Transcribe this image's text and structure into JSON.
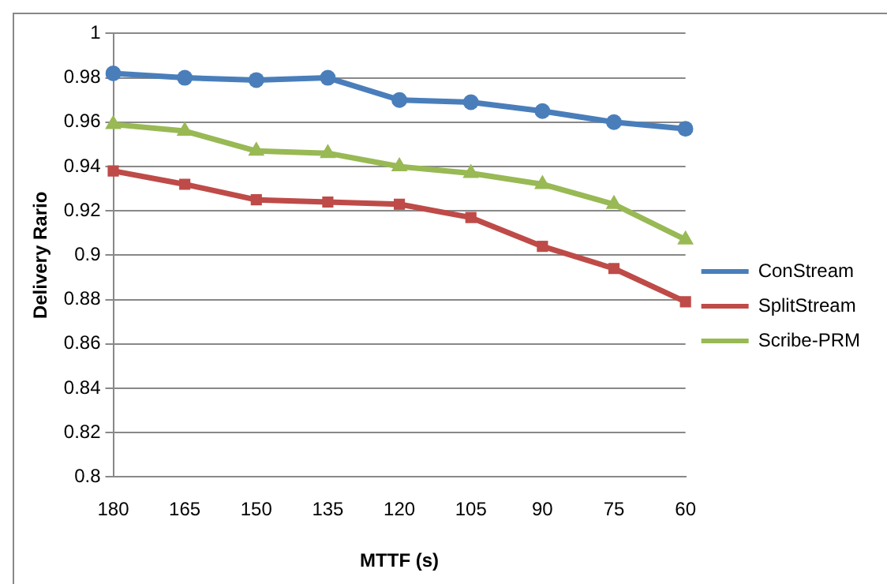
{
  "chart_data": {
    "type": "line",
    "xlabel": "MTTF (s)",
    "ylabel": "Delivery Rario",
    "categories": [
      "180",
      "165",
      "150",
      "135",
      "120",
      "105",
      "90",
      "75",
      "60"
    ],
    "series": [
      {
        "name": "ConStream",
        "color": "#4a7ebb",
        "marker": "circle",
        "values": [
          0.982,
          0.98,
          0.979,
          0.98,
          0.97,
          0.969,
          0.965,
          0.96,
          0.957
        ]
      },
      {
        "name": "SplitStream",
        "color": "#be4b48",
        "marker": "square",
        "values": [
          0.938,
          0.932,
          0.925,
          0.924,
          0.923,
          0.917,
          0.904,
          0.894,
          0.879
        ]
      },
      {
        "name": "Scribe-PRM",
        "color": "#98b954",
        "marker": "triangle",
        "values": [
          0.959,
          0.956,
          0.947,
          0.946,
          0.94,
          0.937,
          0.932,
          0.923,
          0.907
        ]
      }
    ],
    "ylim": [
      0.8,
      1
    ],
    "yticks": [
      0.8,
      0.82,
      0.84,
      0.86,
      0.88,
      0.9,
      0.92,
      0.94,
      0.96,
      0.98,
      1
    ],
    "grid": "y",
    "legend": "right",
    "line_style": "solid"
  }
}
